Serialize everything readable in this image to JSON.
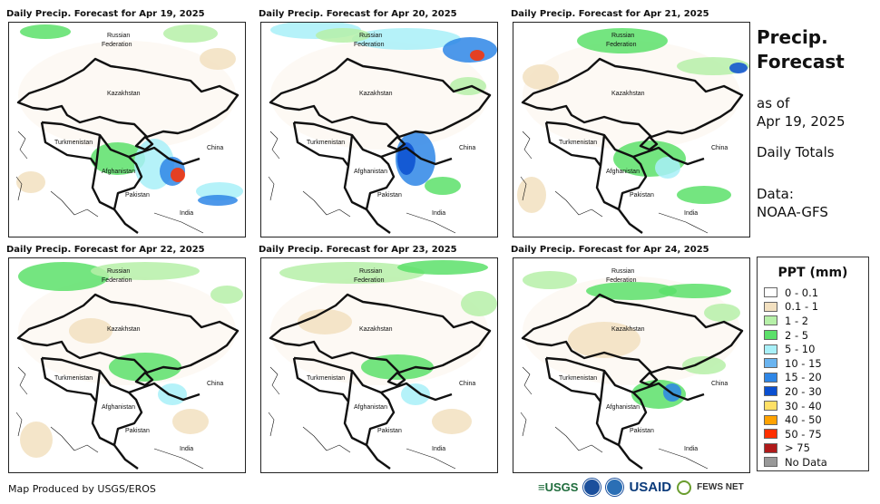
{
  "panels": [
    {
      "title": "Daily Precip. Forecast for Apr 19, 2025"
    },
    {
      "title": "Daily Precip. Forecast for Apr 20, 2025"
    },
    {
      "title": "Daily Precip. Forecast for Apr 21, 2025"
    },
    {
      "title": "Daily Precip. Forecast for Apr 22, 2025"
    },
    {
      "title": "Daily Precip. Forecast for Apr 23, 2025"
    },
    {
      "title": "Daily Precip. Forecast for Apr 24, 2025"
    }
  ],
  "country_labels": {
    "russia_1": "Russian",
    "russia_2": "Federation",
    "kazakhstan": "Kazakhstan",
    "turkmenistan": "Turkmenistan",
    "china": "China",
    "afghanistan": "Afghanistan",
    "pakistan": "Pakistan",
    "india": "India"
  },
  "side": {
    "title_1": "Precip.",
    "title_2": "Forecast",
    "asof_1": "as of",
    "asof_2": "Apr 19, 2025",
    "daily": "Daily Totals",
    "data_1": "Data:",
    "data_2": "NOAA-GFS"
  },
  "legend": {
    "title": "PPT (mm)",
    "items": [
      {
        "label": "0 - 0.1",
        "color": "#ffffff"
      },
      {
        "label": "0.1 - 1",
        "color": "#f2e0c0"
      },
      {
        "label": "1 - 2",
        "color": "#b6f0a8"
      },
      {
        "label": "2 - 5",
        "color": "#5ce06a"
      },
      {
        "label": "5 - 10",
        "color": "#a8f0f8"
      },
      {
        "label": "10 - 15",
        "color": "#6ab4f0"
      },
      {
        "label": "15 - 20",
        "color": "#2e86e6"
      },
      {
        "label": "20 - 30",
        "color": "#0a4fd0"
      },
      {
        "label": "30 - 40",
        "color": "#ffe066"
      },
      {
        "label": "40 - 50",
        "color": "#ffa200"
      },
      {
        "label": "50 - 75",
        "color": "#ff3000"
      },
      {
        "label": "> 75",
        "color": "#b01a1a"
      },
      {
        "label": "No Data",
        "color": "#999999"
      }
    ]
  },
  "footer": "Map Produced by USGS/EROS",
  "logos": {
    "usgs": "≡USGS",
    "usaid": "USAID",
    "fews": "FEWS NET"
  }
}
